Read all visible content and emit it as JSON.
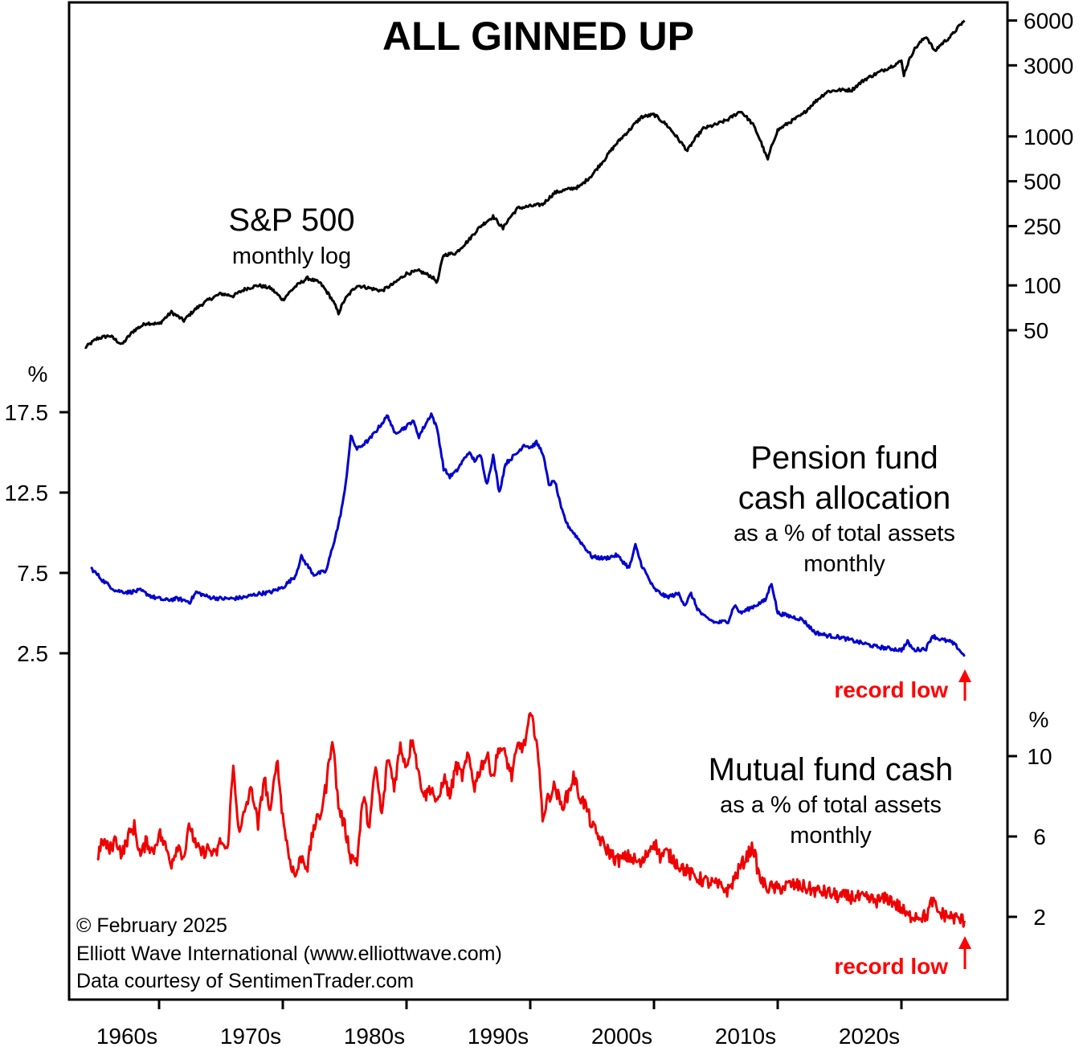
{
  "chart_data": {
    "type": "line",
    "title": "ALL GINNED UP",
    "x_tick_labels": [
      "1960s",
      "1970s",
      "1980s",
      "1990s",
      "2000s",
      "2010s",
      "2020s"
    ],
    "x_range": [
      1953,
      2027
    ],
    "panels": [
      {
        "name": "sp500",
        "label": "S&P 500",
        "sublabel": "monthly log",
        "scale": "log",
        "y_ticks": [
          50,
          100,
          250,
          500,
          1000,
          3000,
          6000
        ],
        "y_tick_labels": [
          "50",
          "100",
          "250",
          "500",
          "1000",
          "3000",
          "6000"
        ],
        "color": "#000000",
        "series": {
          "name": "S&P 500",
          "x": [
            1954.0,
            1955.0,
            1956.0,
            1957.0,
            1958.0,
            1959.0,
            1960.0,
            1961.0,
            1962.0,
            1963.0,
            1964.0,
            1965.0,
            1966.0,
            1967.0,
            1968.0,
            1969.0,
            1970.0,
            1971.0,
            1972.0,
            1973.0,
            1974.0,
            1974.5,
            1975.0,
            1976.0,
            1977.0,
            1978.0,
            1979.0,
            1980.0,
            1981.0,
            1982.0,
            1982.5,
            1983.0,
            1984.0,
            1985.0,
            1986.0,
            1987.0,
            1987.8,
            1988.0,
            1989.0,
            1990.0,
            1991.0,
            1992.0,
            1993.0,
            1994.0,
            1995.0,
            1996.0,
            1997.0,
            1998.0,
            1999.0,
            2000.0,
            2001.0,
            2002.0,
            2002.7,
            2003.0,
            2004.0,
            2005.0,
            2006.0,
            2007.0,
            2008.0,
            2009.0,
            2009.2,
            2010.0,
            2011.0,
            2012.0,
            2013.0,
            2014.0,
            2015.0,
            2016.0,
            2017.0,
            2018.0,
            2019.0,
            2020.0,
            2020.2,
            2021.0,
            2022.0,
            2022.7,
            2023.0,
            2024.0,
            2025.1
          ],
          "values": [
            38,
            44,
            46,
            40,
            50,
            56,
            55,
            66,
            58,
            70,
            80,
            88,
            85,
            95,
            100,
            96,
            80,
            98,
            112,
            104,
            80,
            65,
            80,
            100,
            96,
            92,
            103,
            120,
            125,
            115,
            105,
            160,
            165,
            200,
            250,
            290,
            240,
            260,
            330,
            340,
            350,
            420,
            440,
            460,
            550,
            700,
            900,
            1100,
            1350,
            1400,
            1200,
            950,
            800,
            880,
            1130,
            1200,
            1300,
            1480,
            1200,
            760,
            700,
            1100,
            1250,
            1400,
            1700,
            2000,
            2050,
            2050,
            2400,
            2650,
            2900,
            3200,
            2600,
            3800,
            4700,
            3700,
            4000,
            4700,
            6000
          ]
        }
      },
      {
        "name": "pension",
        "label": "Pension fund",
        "label2": "cash allocation",
        "sublabel": "as a % of total assets",
        "sublabel2": "monthly",
        "unit_label": "%",
        "y_ticks": [
          2.5,
          7.5,
          12.5,
          17.5
        ],
        "y_tick_labels": [
          "2.5",
          "7.5",
          "12.5",
          "17.5"
        ],
        "color": "#0000cc",
        "annotation": "record low",
        "series": {
          "name": "Pension fund cash allocation",
          "x": [
            1954.5,
            1955.5,
            1956.5,
            1957.5,
            1958.5,
            1959.5,
            1960.5,
            1961.5,
            1962.5,
            1963.0,
            1964.0,
            1965.0,
            1966.0,
            1967.0,
            1968.0,
            1969.0,
            1970.0,
            1971.0,
            1971.5,
            1972.5,
            1973.5,
            1974.5,
            1975.0,
            1975.5,
            1976.0,
            1977.0,
            1978.0,
            1978.5,
            1979.0,
            1980.0,
            1980.5,
            1981.0,
            1982.0,
            1982.5,
            1983.0,
            1983.5,
            1984.0,
            1985.0,
            1985.5,
            1986.0,
            1986.5,
            1987.0,
            1987.5,
            1988.0,
            1989.0,
            1989.5,
            1990.0,
            1990.5,
            1991.0,
            1991.5,
            1992.0,
            1992.5,
            1993.0,
            1994.0,
            1995.0,
            1996.0,
            1997.0,
            1998.0,
            1998.5,
            1999.0,
            2000.0,
            2001.0,
            2002.0,
            2002.5,
            2003.0,
            2003.5,
            2004.0,
            2005.0,
            2006.0,
            2006.5,
            2007.0,
            2008.0,
            2009.0,
            2009.5,
            2010.0,
            2011.0,
            2012.0,
            2013.0,
            2014.0,
            2015.0,
            2016.0,
            2017.0,
            2018.0,
            2019.0,
            2020.0,
            2020.5,
            2021.0,
            2022.0,
            2022.5,
            2023.0,
            2024.0,
            2024.5,
            2025.1
          ],
          "values": [
            7.8,
            7.0,
            6.4,
            6.3,
            6.4,
            6.0,
            5.8,
            5.9,
            5.7,
            6.3,
            6.0,
            5.9,
            5.9,
            6.0,
            6.2,
            6.3,
            6.6,
            7.3,
            8.5,
            7.4,
            7.6,
            10.5,
            12.5,
            16.0,
            15.2,
            15.8,
            16.8,
            17.3,
            16.2,
            16.6,
            17.0,
            16.0,
            17.4,
            16.4,
            14.0,
            13.5,
            13.8,
            15.0,
            14.5,
            14.8,
            13.0,
            14.8,
            12.5,
            14.3,
            15.0,
            15.5,
            15.3,
            15.6,
            15.0,
            13.0,
            13.2,
            11.5,
            10.5,
            9.5,
            8.5,
            8.4,
            8.6,
            7.8,
            9.2,
            8.0,
            6.5,
            6.0,
            6.2,
            5.5,
            6.2,
            5.3,
            4.8,
            4.4,
            4.5,
            5.5,
            5.0,
            5.4,
            5.8,
            6.9,
            5.0,
            4.8,
            4.6,
            3.8,
            3.6,
            3.5,
            3.3,
            3.1,
            2.9,
            2.8,
            2.7,
            3.2,
            2.7,
            2.8,
            3.6,
            3.4,
            3.2,
            2.9,
            2.3
          ]
        }
      },
      {
        "name": "mutual",
        "label": "Mutual fund cash",
        "sublabel": "as a % of total assets",
        "sublabel2": "monthly",
        "unit_label": "%",
        "y_ticks": [
          2,
          6,
          10
        ],
        "y_tick_labels": [
          "2",
          "6",
          "10"
        ],
        "color": "#ee0000",
        "annotation": "record low",
        "series": {
          "name": "Mutual fund cash",
          "x": [
            1955.0,
            1955.5,
            1956.0,
            1956.5,
            1957.0,
            1957.5,
            1958.0,
            1958.5,
            1959.0,
            1959.5,
            1960.0,
            1960.5,
            1961.0,
            1961.5,
            1962.0,
            1962.5,
            1963.0,
            1963.5,
            1964.0,
            1964.5,
            1965.0,
            1965.5,
            1966.0,
            1966.5,
            1967.0,
            1967.5,
            1968.0,
            1968.5,
            1969.0,
            1969.5,
            1970.0,
            1970.5,
            1971.0,
            1971.5,
            1972.0,
            1972.5,
            1973.0,
            1973.5,
            1974.0,
            1974.5,
            1975.0,
            1975.5,
            1976.0,
            1976.5,
            1977.0,
            1977.5,
            1978.0,
            1978.5,
            1979.0,
            1979.5,
            1980.0,
            1980.5,
            1981.0,
            1981.5,
            1982.0,
            1982.5,
            1983.0,
            1983.5,
            1984.0,
            1984.5,
            1985.0,
            1985.5,
            1986.0,
            1986.5,
            1987.0,
            1987.5,
            1988.0,
            1988.5,
            1989.0,
            1989.5,
            1990.0,
            1990.5,
            1991.0,
            1991.5,
            1992.0,
            1992.5,
            1993.0,
            1993.5,
            1994.0,
            1994.5,
            1995.0,
            1996.0,
            1997.0,
            1998.0,
            1999.0,
            2000.0,
            2000.5,
            2001.0,
            2002.0,
            2003.0,
            2004.0,
            2005.0,
            2006.0,
            2007.0,
            2008.0,
            2008.5,
            2009.0,
            2010.0,
            2011.0,
            2012.0,
            2013.0,
            2014.0,
            2015.0,
            2016.0,
            2017.0,
            2018.0,
            2019.0,
            2020.0,
            2020.5,
            2021.0,
            2022.0,
            2022.5,
            2023.0,
            2024.0,
            2025.1
          ],
          "values": [
            5.0,
            5.8,
            5.3,
            5.9,
            5.1,
            6.0,
            6.5,
            5.0,
            5.8,
            5.2,
            6.2,
            5.5,
            4.7,
            5.6,
            5.0,
            6.6,
            5.4,
            5.2,
            5.4,
            5.0,
            5.8,
            5.2,
            9.5,
            6.0,
            7.5,
            8.4,
            6.5,
            9.0,
            7.0,
            10.0,
            7.0,
            5.0,
            4.0,
            5.0,
            4.5,
            6.5,
            7.0,
            8.5,
            11.0,
            7.5,
            6.5,
            5.0,
            4.8,
            8.0,
            6.5,
            9.5,
            7.0,
            10.0,
            8.5,
            10.5,
            9.5,
            11.0,
            9.0,
            8.0,
            8.5,
            7.5,
            9.0,
            8.0,
            9.5,
            9.0,
            10.0,
            8.5,
            9.5,
            10.0,
            9.0,
            10.5,
            10.0,
            9.0,
            10.5,
            10.5,
            12.0,
            11.0,
            7.0,
            8.0,
            8.5,
            7.5,
            8.0,
            9.0,
            8.0,
            7.5,
            6.5,
            5.5,
            4.8,
            5.0,
            4.6,
            5.8,
            5.0,
            5.2,
            4.6,
            4.1,
            3.8,
            3.6,
            3.3,
            4.5,
            5.5,
            4.0,
            3.5,
            3.4,
            3.6,
            3.5,
            3.3,
            3.2,
            3.0,
            3.0,
            2.9,
            2.8,
            2.9,
            2.4,
            2.0,
            2.1,
            2.0,
            2.8,
            2.2,
            2.0,
            1.8
          ]
        }
      }
    ]
  },
  "copyright": "© February 2025",
  "publisher": "Elliott Wave International (www.elliottwave.com)",
  "data_credit": "Data courtesy of SentimenTrader.com"
}
